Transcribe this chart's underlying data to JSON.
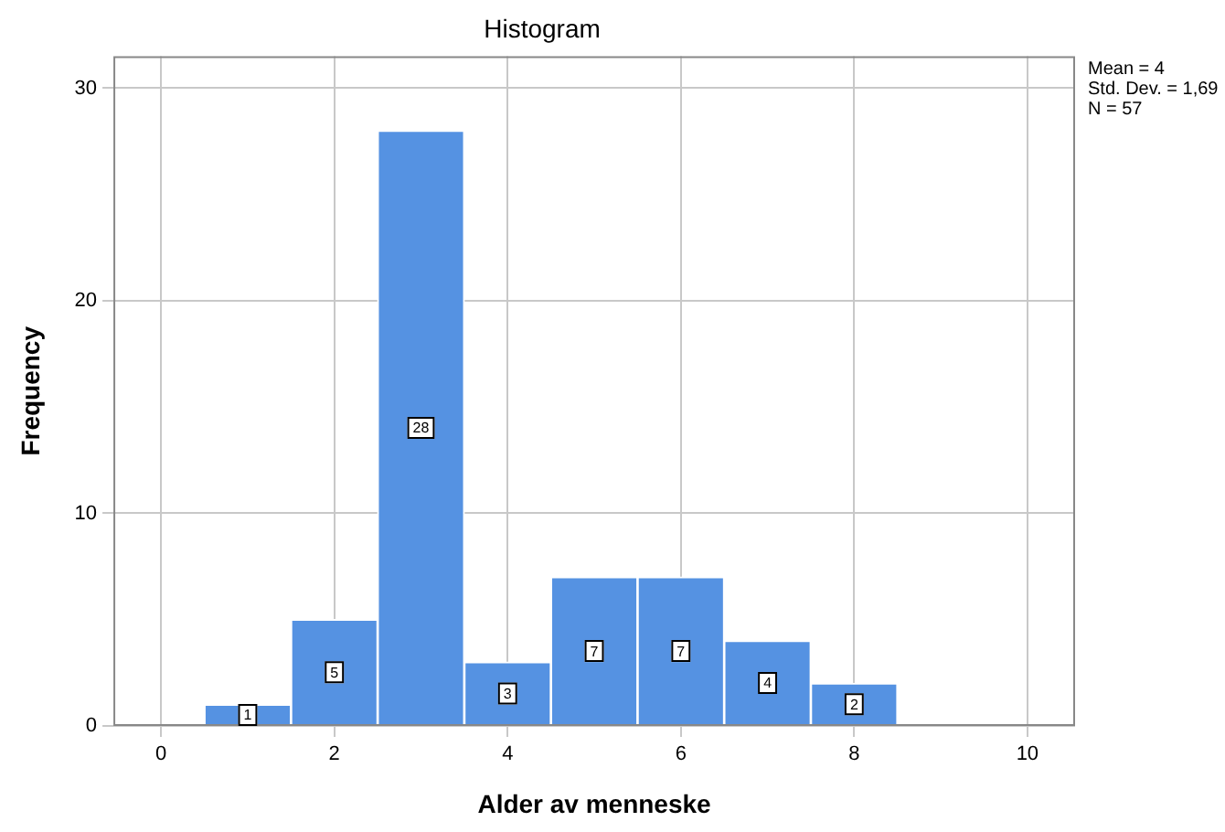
{
  "chart_data": {
    "type": "histogram",
    "title": "Histogram",
    "xlabel": "Alder av menneske",
    "ylabel": "Frequency",
    "bins": [
      0.5,
      1.5,
      2.5,
      3.5,
      4.5,
      5.5,
      6.5,
      7.5,
      8.5
    ],
    "values": [
      1,
      5,
      28,
      3,
      7,
      7,
      4,
      2
    ],
    "color": "#5592e2",
    "xlim": [
      -0.55,
      10.55
    ],
    "xticks": [
      0,
      2,
      4,
      6,
      8,
      10
    ],
    "ylim": [
      0,
      31.5
    ],
    "yticks": [
      0,
      10,
      20,
      30
    ],
    "grid": true,
    "legend": false,
    "data_labels": true,
    "annotations": [
      "Mean = 4",
      "Std. Dev. = 1,69",
      "N = 57"
    ]
  }
}
